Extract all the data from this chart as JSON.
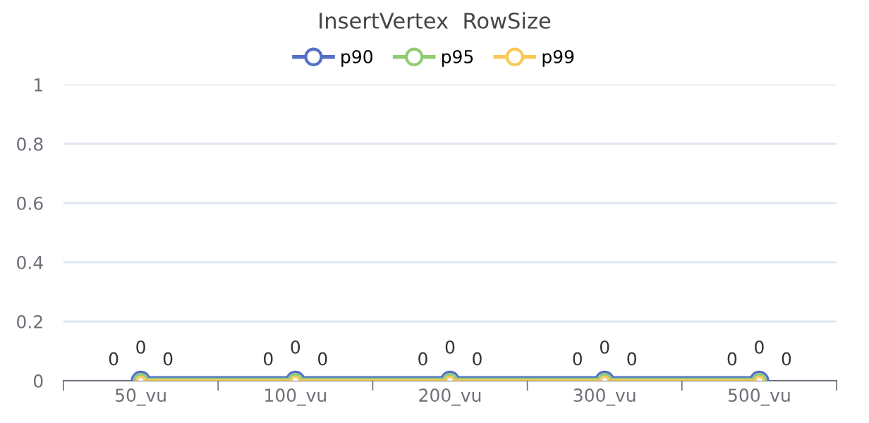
{
  "chart_data": {
    "type": "line",
    "title": "InsertVertex  RowSize",
    "categories": [
      "50_vu",
      "100_vu",
      "200_vu",
      "300_vu",
      "500_vu"
    ],
    "series": [
      {
        "name": "p90",
        "color": "#5470c6",
        "values": [
          0,
          0,
          0,
          0,
          0
        ]
      },
      {
        "name": "p95",
        "color": "#91cc75",
        "values": [
          0,
          0,
          0,
          0,
          0
        ]
      },
      {
        "name": "p99",
        "color": "#fac858",
        "values": [
          0,
          0,
          0,
          0,
          0
        ]
      }
    ],
    "ylim": [
      0,
      1
    ],
    "yticks": [
      0,
      0.2,
      0.4,
      0.6,
      0.8,
      1
    ],
    "grid": "y",
    "legend": "top",
    "marker": "circle",
    "line_style": "solid",
    "data_labels": true
  }
}
